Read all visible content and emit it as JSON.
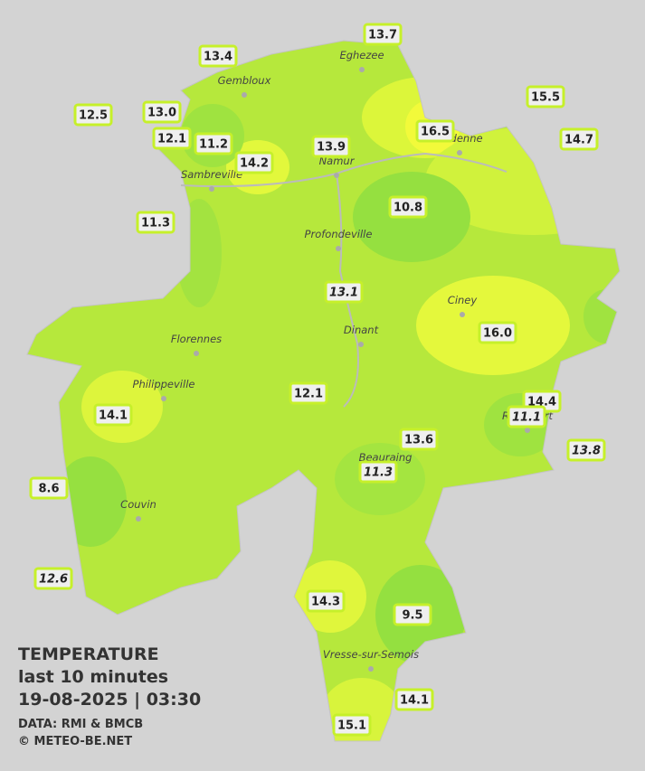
{
  "map": {
    "stations": [
      {
        "label": "13.7"
      },
      {
        "label": "13.4"
      },
      {
        "label": "15.5"
      },
      {
        "label": "12.5"
      },
      {
        "label": "13.0"
      },
      {
        "label": "16.5"
      },
      {
        "label": "14.7"
      },
      {
        "label": "12.1"
      },
      {
        "label": "11.2"
      },
      {
        "label": "13.9"
      },
      {
        "label": "14.2"
      },
      {
        "label": "10.8"
      },
      {
        "label": "11.3"
      },
      {
        "label": "13.1",
        "italic": true
      },
      {
        "label": "16.0"
      },
      {
        "label": "12.1"
      },
      {
        "label": "14.4"
      },
      {
        "label": "14.1"
      },
      {
        "label": "11.1",
        "italic": true
      },
      {
        "label": "13.6"
      },
      {
        "label": "13.8",
        "italic": true
      },
      {
        "label": "11.3",
        "italic": true
      },
      {
        "label": "8.6"
      },
      {
        "label": "12.6",
        "italic": true
      },
      {
        "label": "14.3"
      },
      {
        "label": "9.5"
      },
      {
        "label": "14.1"
      },
      {
        "label": "15.1"
      }
    ],
    "cities": [
      "Eghezee",
      "Gembloux",
      "Andenne",
      "Namur",
      "Sambreville",
      "Profondeville",
      "Ciney",
      "Dinant",
      "Florennes",
      "Philippeville",
      "Rochefort",
      "Beauraing",
      "Couvin",
      "Vresse-sur-Semois"
    ]
  },
  "legend": {
    "title": "TEMPERATURE",
    "subtitle": "last 10 minutes",
    "datetime": "19-08-2025  |  03:30",
    "source": "DATA: RMI & BMCB",
    "copyright": "© METEO-BE.NET"
  }
}
